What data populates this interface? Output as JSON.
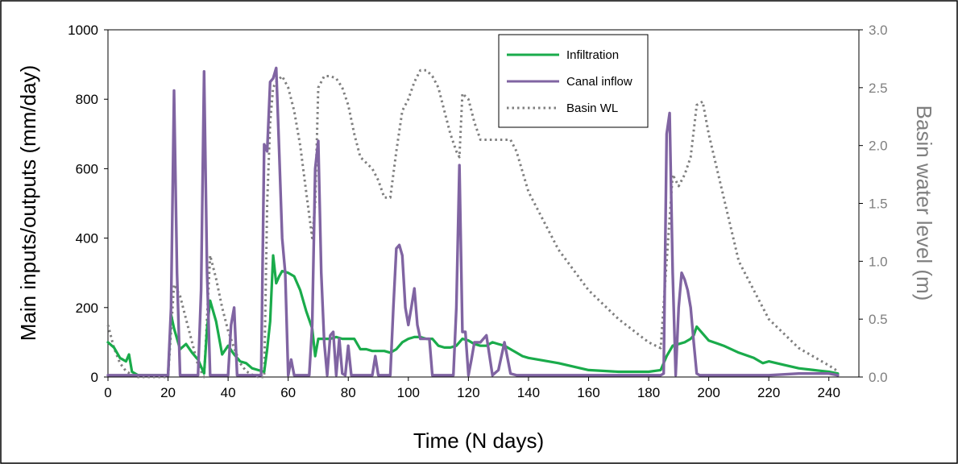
{
  "chart_data": {
    "type": "line",
    "title": "",
    "xlabel": "Time (N days)",
    "ylabel": "Main inputs/outputs (mm/day)",
    "y2label": "Basin water level (m)",
    "xlim": [
      0,
      250
    ],
    "ylim": [
      0,
      1000
    ],
    "y2lim": [
      0,
      3.0
    ],
    "x_ticks": [
      "0",
      "20",
      "40",
      "60",
      "80",
      "100",
      "120",
      "140",
      "160",
      "180",
      "200",
      "220",
      "240"
    ],
    "y_ticks": [
      "0",
      "200",
      "400",
      "600",
      "800",
      "1000"
    ],
    "y2_ticks": [
      "0.0",
      "0.5",
      "1.0",
      "1.5",
      "2.0",
      "2.5",
      "3.0"
    ],
    "grid": false,
    "legend_position": "top-center",
    "colors": {
      "infiltration": "#1aab4b",
      "canal": "#8064a2",
      "basin": "#7f7f7f",
      "right_axis": "#7f7f7f"
    },
    "series": [
      {
        "name": "Infiltration",
        "axis": "left",
        "style": "solid",
        "x": [
          0,
          2,
          4,
          6,
          7,
          8,
          10,
          12,
          14,
          16,
          18,
          20,
          21,
          22,
          24,
          26,
          28,
          30,
          32,
          33,
          34,
          36,
          38,
          40,
          42,
          44,
          46,
          48,
          50,
          52,
          53,
          54,
          55,
          56,
          57,
          58,
          60,
          62,
          64,
          66,
          68,
          69,
          70,
          72,
          74,
          76,
          78,
          80,
          82,
          84,
          86,
          88,
          90,
          92,
          94,
          96,
          98,
          100,
          102,
          104,
          106,
          108,
          110,
          112,
          114,
          116,
          118,
          120,
          122,
          124,
          126,
          128,
          130,
          132,
          134,
          136,
          138,
          140,
          150,
          160,
          170,
          180,
          184,
          186,
          188,
          190,
          192,
          194,
          195,
          196,
          198,
          200,
          205,
          210,
          215,
          218,
          220,
          225,
          230,
          235,
          240,
          243
        ],
        "y": [
          100,
          85,
          55,
          45,
          65,
          15,
          5,
          5,
          5,
          5,
          5,
          5,
          180,
          140,
          80,
          95,
          70,
          50,
          10,
          140,
          220,
          160,
          65,
          90,
          65,
          45,
          40,
          25,
          20,
          15,
          80,
          160,
          350,
          270,
          290,
          305,
          300,
          290,
          250,
          190,
          140,
          60,
          110,
          110,
          110,
          115,
          110,
          110,
          110,
          80,
          80,
          75,
          75,
          75,
          70,
          80,
          100,
          110,
          115,
          115,
          110,
          110,
          90,
          85,
          85,
          90,
          110,
          105,
          95,
          90,
          90,
          100,
          95,
          90,
          80,
          70,
          60,
          55,
          40,
          20,
          15,
          15,
          20,
          60,
          90,
          95,
          100,
          110,
          120,
          145,
          125,
          105,
          90,
          70,
          55,
          40,
          45,
          35,
          25,
          20,
          15,
          10
        ]
      },
      {
        "name": "Canal inflow",
        "axis": "left",
        "style": "solid",
        "x": [
          0,
          20,
          21,
          22,
          23,
          24,
          30,
          31,
          32,
          33,
          34,
          40,
          41,
          42,
          43,
          44,
          51,
          52,
          53,
          54,
          55,
          56,
          57,
          58,
          59,
          60,
          61,
          62,
          66,
          67,
          68,
          69,
          70,
          71,
          72,
          73,
          74,
          75,
          76,
          77,
          78,
          79,
          80,
          81,
          82,
          86,
          88,
          89,
          90,
          92,
          94,
          95,
          96,
          97,
          98,
          99,
          100,
          101,
          102,
          103,
          104,
          105,
          106,
          107,
          108,
          109,
          110,
          115,
          116,
          117,
          118,
          119,
          120,
          121,
          122,
          124,
          126,
          128,
          130,
          132,
          134,
          136,
          138,
          140,
          150,
          160,
          170,
          180,
          184,
          185,
          186,
          187,
          188,
          189,
          190,
          191,
          192,
          193,
          194,
          195,
          196,
          197,
          198,
          200,
          220,
          230,
          240,
          243
        ],
        "y": [
          5,
          5,
          200,
          825,
          300,
          5,
          5,
          250,
          880,
          300,
          5,
          5,
          150,
          200,
          5,
          5,
          5,
          670,
          650,
          850,
          860,
          890,
          650,
          400,
          300,
          5,
          50,
          5,
          5,
          5,
          150,
          600,
          680,
          300,
          100,
          5,
          120,
          130,
          5,
          110,
          10,
          5,
          90,
          5,
          5,
          5,
          5,
          60,
          5,
          5,
          5,
          200,
          370,
          380,
          350,
          200,
          150,
          200,
          255,
          150,
          110,
          110,
          110,
          110,
          5,
          5,
          5,
          5,
          200,
          610,
          130,
          130,
          5,
          50,
          100,
          100,
          120,
          5,
          20,
          100,
          10,
          5,
          5,
          5,
          5,
          5,
          5,
          5,
          5,
          10,
          700,
          760,
          300,
          5,
          200,
          300,
          280,
          250,
          200,
          100,
          10,
          5,
          5,
          5,
          5,
          10,
          10,
          5
        ],
        "values_note": ""
      },
      {
        "name": "Basin WL",
        "axis": "right",
        "style": "dotted",
        "x": [
          0,
          2,
          4,
          6,
          8,
          10,
          20,
          22,
          24,
          26,
          28,
          30,
          32,
          34,
          36,
          38,
          40,
          42,
          44,
          46,
          48,
          50,
          52,
          53,
          54,
          55,
          56,
          58,
          60,
          62,
          64,
          66,
          68,
          69,
          70,
          72,
          74,
          76,
          78,
          80,
          82,
          84,
          86,
          88,
          90,
          92,
          94,
          96,
          98,
          100,
          102,
          104,
          106,
          108,
          110,
          112,
          114,
          116,
          117,
          118,
          120,
          122,
          124,
          126,
          128,
          130,
          132,
          134,
          136,
          140,
          150,
          160,
          170,
          180,
          184,
          186,
          188,
          190,
          192,
          194,
          196,
          198,
          200,
          210,
          220,
          230,
          240,
          243
        ],
        "y": [
          0.45,
          0.25,
          0.12,
          0.05,
          0.02,
          0.0,
          0.0,
          0.8,
          0.7,
          0.5,
          0.3,
          0.1,
          0.0,
          1.05,
          0.85,
          0.6,
          0.4,
          0.25,
          0.12,
          0.05,
          0.02,
          0.0,
          0.0,
          1.5,
          2.2,
          2.5,
          2.55,
          2.6,
          2.5,
          2.3,
          2.0,
          1.6,
          1.2,
          1.5,
          2.5,
          2.6,
          2.6,
          2.58,
          2.5,
          2.35,
          2.1,
          1.9,
          1.85,
          1.8,
          1.7,
          1.55,
          1.55,
          1.95,
          2.3,
          2.4,
          2.55,
          2.65,
          2.65,
          2.6,
          2.5,
          2.3,
          2.1,
          1.95,
          1.9,
          2.45,
          2.4,
          2.2,
          2.05,
          2.05,
          2.05,
          2.05,
          2.05,
          2.05,
          1.95,
          1.6,
          1.1,
          0.75,
          0.5,
          0.3,
          0.25,
          1.0,
          1.75,
          1.65,
          1.75,
          1.9,
          2.35,
          2.38,
          2.1,
          1.0,
          0.5,
          0.25,
          0.1,
          0.05
        ]
      }
    ]
  }
}
